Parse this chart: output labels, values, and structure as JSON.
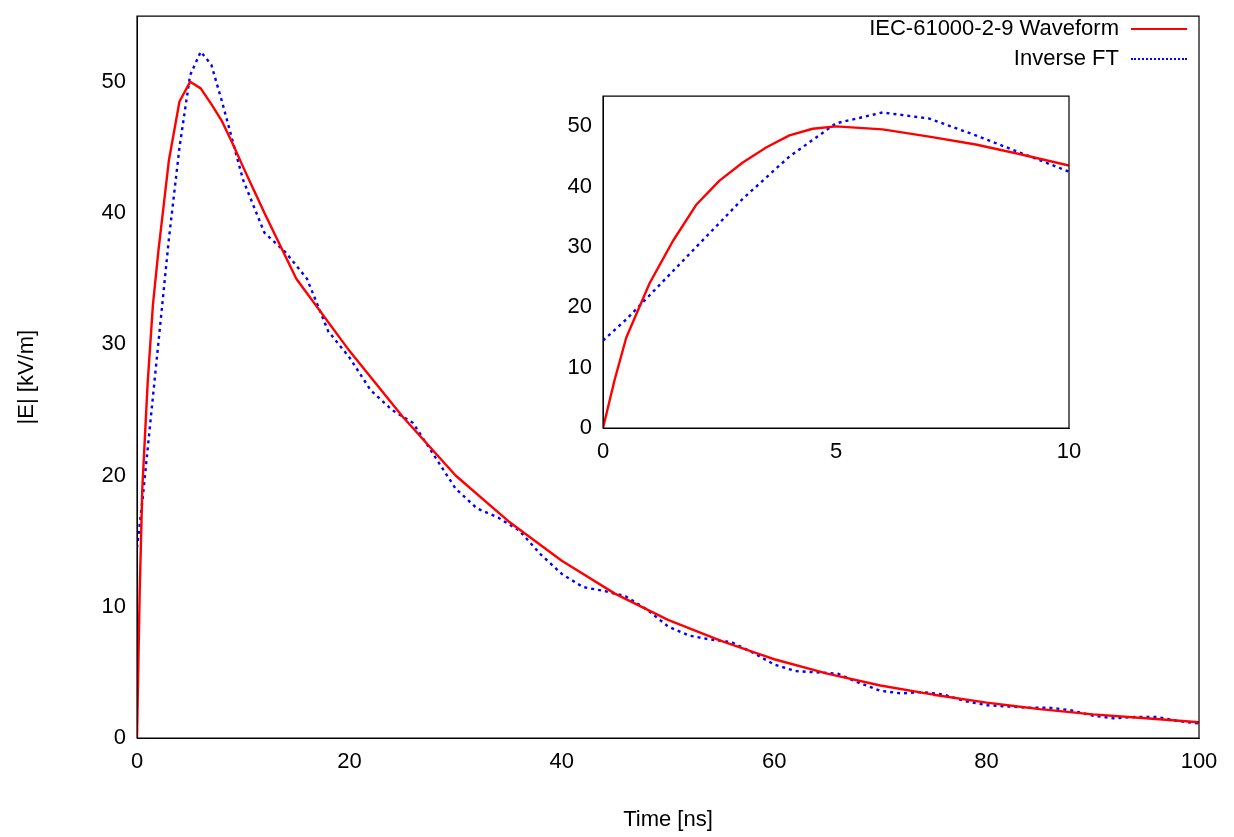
{
  "chart_data": [
    {
      "type": "line",
      "xlabel": "Time [ns]",
      "ylabel": "|E| [kV/m]",
      "xlim": [
        0,
        100
      ],
      "ylim": [
        0,
        55
      ],
      "xticks": [
        0,
        20,
        40,
        60,
        80,
        100
      ],
      "yticks": [
        0,
        10,
        20,
        30,
        40,
        50
      ],
      "legend": "top right",
      "marker": "none",
      "grid": false,
      "series": [
        {
          "name": "IEC-61000-2-9 Waveform",
          "color": "#ff0000",
          "line_style": "solid",
          "x": [
            0,
            0.25,
            0.5,
            1,
            1.5,
            2,
            3,
            4,
            5,
            6,
            7,
            8,
            9,
            10,
            12,
            15,
            20,
            25,
            30,
            35,
            40,
            45,
            50,
            55,
            60,
            65,
            70,
            75,
            80,
            85,
            90,
            95,
            100
          ],
          "values": [
            0,
            11,
            19,
            27,
            33,
            37,
            44,
            48.5,
            50,
            49.5,
            48.3,
            47,
            45.3,
            43.5,
            40,
            35,
            29.5,
            24.5,
            20,
            16.5,
            13.5,
            11,
            9,
            7.4,
            6,
            4.9,
            4,
            3.3,
            2.7,
            2.2,
            1.8,
            1.5,
            1.2
          ]
        },
        {
          "name": "Inverse FT",
          "color": "#0000ff",
          "line_style": "dotted",
          "x": [
            0,
            0.5,
            1,
            2,
            3,
            4,
            5,
            6,
            7,
            8,
            9,
            10,
            12,
            14,
            16,
            18,
            20,
            22,
            24,
            26,
            28,
            30,
            32,
            34,
            36,
            38,
            40,
            42,
            44,
            46,
            48,
            50,
            52,
            54,
            56,
            58,
            60,
            62,
            64,
            66,
            68,
            70,
            72,
            74,
            76,
            78,
            80,
            82,
            84,
            86,
            88,
            90,
            92,
            94,
            96,
            98,
            100
          ],
          "values": [
            14.5,
            18,
            22,
            30,
            38,
            45,
            50.5,
            52.3,
            51.3,
            48.5,
            45.5,
            42.5,
            38.5,
            37,
            35,
            31,
            29,
            26.5,
            25,
            24,
            21.5,
            19,
            17.5,
            16.8,
            15.8,
            14,
            12.5,
            11.5,
            11.2,
            10.8,
            9.8,
            8.5,
            7.8,
            7.5,
            7.3,
            6.5,
            5.6,
            5.1,
            5,
            4.9,
            4.2,
            3.6,
            3.4,
            3.5,
            3.3,
            2.8,
            2.5,
            2.4,
            2.3,
            2.3,
            2.1,
            1.7,
            1.5,
            1.6,
            1.6,
            1.3,
            1.1
          ]
        }
      ]
    },
    {
      "type": "line",
      "xlim": [
        0,
        10
      ],
      "ylim": [
        0,
        55
      ],
      "xticks": [
        0,
        5,
        10
      ],
      "yticks": [
        0,
        10,
        20,
        30,
        40,
        50
      ],
      "marker": "none",
      "grid": false,
      "series": [
        {
          "color": "#ff0000",
          "line_style": "solid",
          "x": [
            0,
            0.25,
            0.5,
            1,
            1.5,
            2,
            2.5,
            3,
            3.5,
            4,
            4.5,
            5,
            6,
            7,
            8,
            9,
            10
          ],
          "values": [
            0,
            8,
            15,
            24,
            31,
            37,
            41,
            44,
            46.5,
            48.5,
            49.6,
            50,
            49.5,
            48.3,
            47,
            45.3,
            43.5
          ]
        },
        {
          "color": "#0000ff",
          "line_style": "dotted",
          "x": [
            0,
            0.5,
            1,
            2,
            3,
            4,
            5,
            6,
            7,
            8,
            9,
            10
          ],
          "values": [
            14.5,
            18,
            22,
            30,
            38,
            45,
            50.5,
            52.3,
            51.3,
            48.5,
            45.5,
            42.5
          ]
        }
      ]
    }
  ]
}
